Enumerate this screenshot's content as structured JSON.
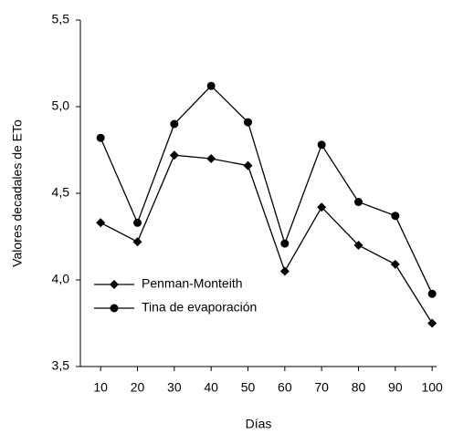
{
  "chart_data": {
    "type": "line",
    "x_label": "Días",
    "y_label": "Valores decadales de ETo",
    "x": [
      10,
      20,
      30,
      40,
      50,
      60,
      70,
      80,
      90,
      100
    ],
    "series": [
      {
        "name": "Penman-Monteith",
        "color": "#000000",
        "marker": "diamond",
        "values": [
          4.33,
          4.22,
          4.72,
          4.7,
          4.66,
          4.05,
          4.42,
          4.2,
          4.09,
          3.75
        ]
      },
      {
        "name": "Tina de evaporación",
        "color": "#000000",
        "marker": "circle",
        "values": [
          4.82,
          4.33,
          4.9,
          5.12,
          4.91,
          4.21,
          4.78,
          4.45,
          4.37,
          3.92
        ]
      }
    ],
    "xlim": [
      4.5,
      101.2
    ],
    "xticks": [
      10,
      20,
      30,
      40,
      50,
      60,
      70,
      80,
      90,
      100
    ],
    "ylim": [
      3.5,
      5.5
    ],
    "yticks": [
      {
        "value": 3.5,
        "label": "3,5"
      },
      {
        "value": 4.0,
        "label": "4,0"
      },
      {
        "value": 4.5,
        "label": "4,5"
      },
      {
        "value": 5.0,
        "label": "5,0"
      },
      {
        "value": 5.5,
        "label": "5,5"
      }
    ],
    "legend": "lower left"
  }
}
